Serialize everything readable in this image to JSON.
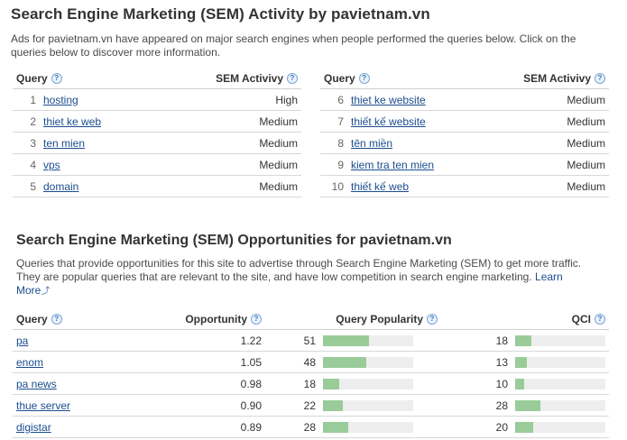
{
  "activity": {
    "title": "Search Engine Marketing (SEM) Activity by pavietnam.vn",
    "description": "Ads for pavietnam.vn have appeared on major search engines when people performed the queries below. Click on the queries below to discover more information.",
    "col_query": "Query",
    "col_activity": "SEM Activivy",
    "left_rows": [
      {
        "n": "1",
        "query": "hosting",
        "activity": "High"
      },
      {
        "n": "2",
        "query": "thiet ke web",
        "activity": "Medium"
      },
      {
        "n": "3",
        "query": "ten mien",
        "activity": "Medium"
      },
      {
        "n": "4",
        "query": "vps",
        "activity": "Medium"
      },
      {
        "n": "5",
        "query": "domain",
        "activity": "Medium"
      }
    ],
    "right_rows": [
      {
        "n": "6",
        "query": "thiet ke website",
        "activity": "Medium"
      },
      {
        "n": "7",
        "query": "thiết kế website",
        "activity": "Medium"
      },
      {
        "n": "8",
        "query": "tên miền",
        "activity": "Medium"
      },
      {
        "n": "9",
        "query": "kiem tra ten mien",
        "activity": "Medium"
      },
      {
        "n": "10",
        "query": "thiết kế web",
        "activity": "Medium"
      }
    ]
  },
  "opportunities": {
    "title": "Search Engine Marketing (SEM) Opportunities for pavietnam.vn",
    "description": "Queries that provide opportunities for this site to advertise through Search Engine Marketing (SEM) to get more traffic. They are popular queries that are relevant to the site, and have low competition in search engine marketing.",
    "learn_more": "Learn More",
    "col_query": "Query",
    "col_opportunity": "Opportunity",
    "col_popularity": "Query Popularity",
    "col_qci": "QCI",
    "rows": [
      {
        "query": "pa",
        "opportunity": "1.22",
        "popularity": 51,
        "qci": 18
      },
      {
        "query": "enom",
        "opportunity": "1.05",
        "popularity": 48,
        "qci": 13
      },
      {
        "query": "pa news",
        "opportunity": "0.98",
        "popularity": 18,
        "qci": 10
      },
      {
        "query": "thue server",
        "opportunity": "0.90",
        "popularity": 22,
        "qci": 28
      },
      {
        "query": "digistar",
        "opportunity": "0.89",
        "popularity": 28,
        "qci": 20
      }
    ]
  },
  "icons": {
    "help": "help-icon",
    "learn_more_arrow": "external-arrow-icon"
  },
  "colors": {
    "bar_fill": "#99cc99",
    "bar_track": "#eeeeee",
    "link": "#1a4d8f"
  }
}
